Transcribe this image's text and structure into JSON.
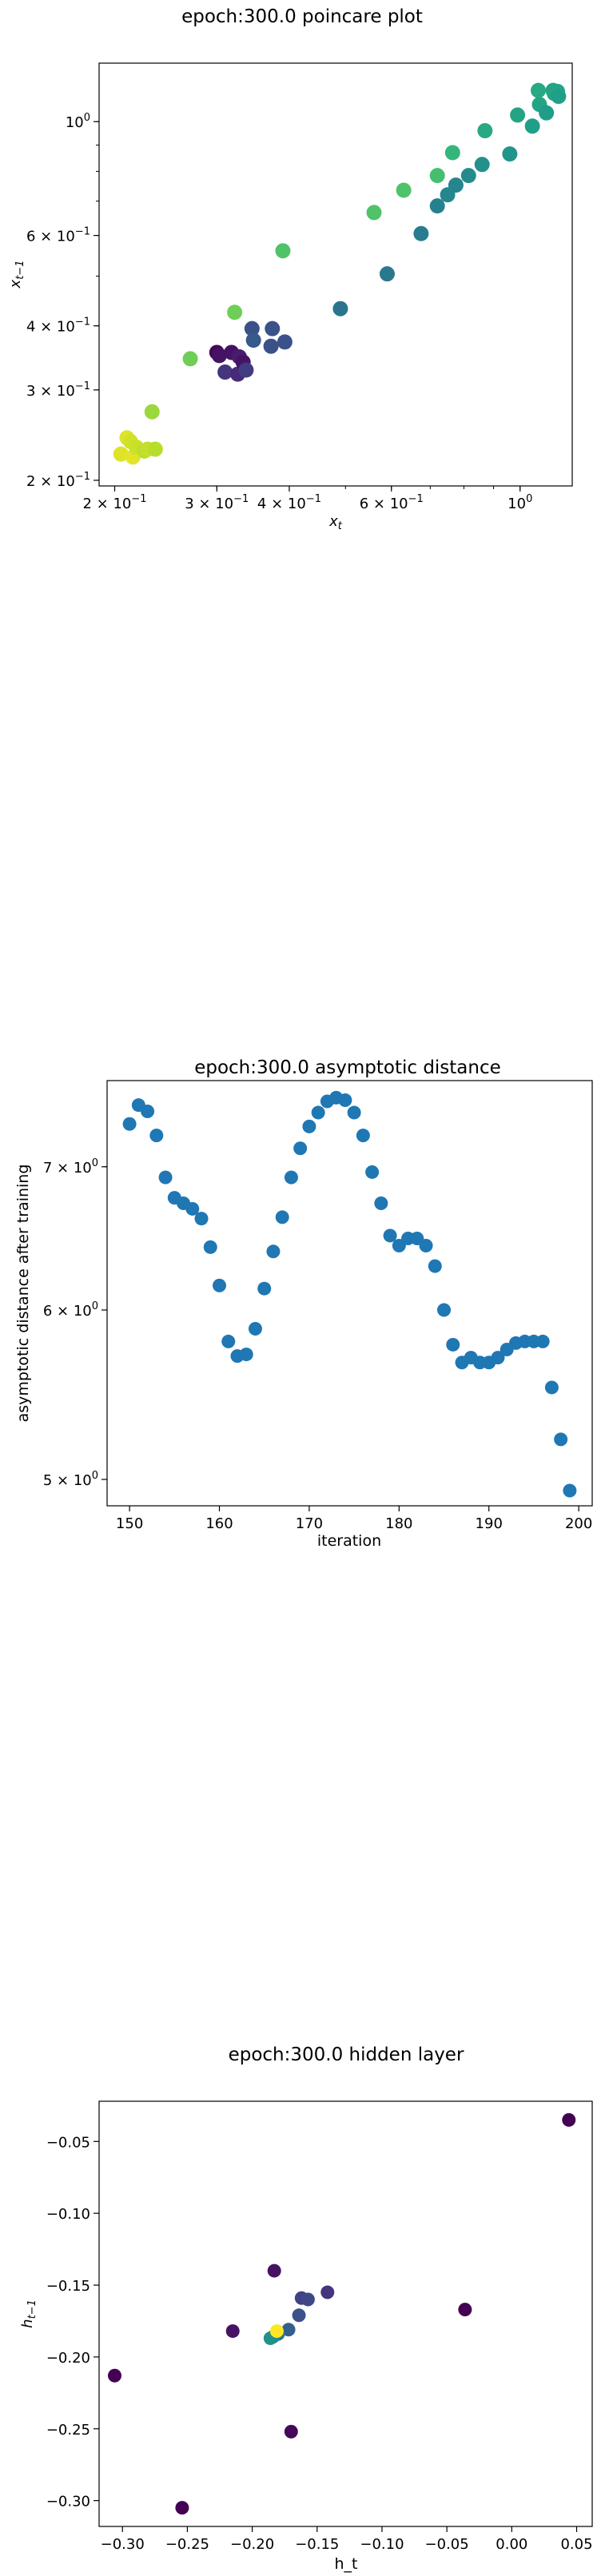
{
  "chart_data": [
    {
      "type": "scatter",
      "title": "epoch:300.0 poincare plot",
      "xlabel": "x_t",
      "ylabel": "x_{t-1}",
      "xscale": "log",
      "yscale": "log",
      "xlim": [
        0.188,
        1.23
      ],
      "ylim": [
        0.195,
        1.3
      ],
      "xticks": [
        {
          "v": 0.2,
          "base": "2",
          "mant": "10",
          "exp": "−1",
          "plain": false
        },
        {
          "v": 0.3,
          "base": "3",
          "mant": "10",
          "exp": "−1",
          "plain": false
        },
        {
          "v": 0.4,
          "base": "4",
          "mant": "10",
          "exp": "−1",
          "plain": false
        },
        {
          "v": 0.6,
          "base": "6",
          "mant": "10",
          "exp": "−1",
          "plain": false
        },
        {
          "v": 1.0,
          "base": "",
          "mant": "10",
          "exp": "0",
          "plain": true
        }
      ],
      "yticks": [
        {
          "v": 0.2,
          "base": "2",
          "mant": "10",
          "exp": "−1",
          "plain": false
        },
        {
          "v": 0.3,
          "base": "3",
          "mant": "10",
          "exp": "−1",
          "plain": false
        },
        {
          "v": 0.4,
          "base": "4",
          "mant": "10",
          "exp": "−1",
          "plain": false
        },
        {
          "v": 0.6,
          "base": "6",
          "mant": "10",
          "exp": "−1",
          "plain": false
        },
        {
          "v": 1.0,
          "base": "",
          "mant": "10",
          "exp": "0",
          "plain": true
        }
      ],
      "grid": false,
      "colormap": "viridis",
      "points": [
        {
          "x": 0.205,
          "y": 0.225,
          "c": 0.95
        },
        {
          "x": 0.21,
          "y": 0.242,
          "c": 0.95
        },
        {
          "x": 0.213,
          "y": 0.238,
          "c": 0.93
        },
        {
          "x": 0.215,
          "y": 0.222,
          "c": 0.96
        },
        {
          "x": 0.218,
          "y": 0.232,
          "c": 0.92
        },
        {
          "x": 0.225,
          "y": 0.228,
          "c": 0.9
        },
        {
          "x": 0.228,
          "y": 0.23,
          "c": 0.91
        },
        {
          "x": 0.232,
          "y": 0.272,
          "c": 0.85
        },
        {
          "x": 0.235,
          "y": 0.23,
          "c": 0.89
        },
        {
          "x": 0.27,
          "y": 0.345,
          "c": 0.78
        },
        {
          "x": 0.3,
          "y": 0.355,
          "c": 0.02
        },
        {
          "x": 0.303,
          "y": 0.35,
          "c": 0.05
        },
        {
          "x": 0.31,
          "y": 0.325,
          "c": 0.15
        },
        {
          "x": 0.318,
          "y": 0.355,
          "c": 0.05
        },
        {
          "x": 0.322,
          "y": 0.425,
          "c": 0.78
        },
        {
          "x": 0.326,
          "y": 0.322,
          "c": 0.12
        },
        {
          "x": 0.328,
          "y": 0.348,
          "c": 0.08
        },
        {
          "x": 0.333,
          "y": 0.34,
          "c": 0.05
        },
        {
          "x": 0.337,
          "y": 0.328,
          "c": 0.18
        },
        {
          "x": 0.345,
          "y": 0.395,
          "c": 0.25
        },
        {
          "x": 0.347,
          "y": 0.375,
          "c": 0.28
        },
        {
          "x": 0.372,
          "y": 0.365,
          "c": 0.25
        },
        {
          "x": 0.374,
          "y": 0.395,
          "c": 0.25
        },
        {
          "x": 0.39,
          "y": 0.56,
          "c": 0.72
        },
        {
          "x": 0.393,
          "y": 0.372,
          "c": 0.25
        },
        {
          "x": 0.49,
          "y": 0.432,
          "c": 0.38
        },
        {
          "x": 0.56,
          "y": 0.665,
          "c": 0.72
        },
        {
          "x": 0.59,
          "y": 0.505,
          "c": 0.4
        },
        {
          "x": 0.63,
          "y": 0.735,
          "c": 0.72
        },
        {
          "x": 0.675,
          "y": 0.605,
          "c": 0.42
        },
        {
          "x": 0.72,
          "y": 0.785,
          "c": 0.7
        },
        {
          "x": 0.72,
          "y": 0.685,
          "c": 0.44
        },
        {
          "x": 0.75,
          "y": 0.72,
          "c": 0.46
        },
        {
          "x": 0.765,
          "y": 0.87,
          "c": 0.66
        },
        {
          "x": 0.775,
          "y": 0.752,
          "c": 0.46
        },
        {
          "x": 0.815,
          "y": 0.785,
          "c": 0.48
        },
        {
          "x": 0.86,
          "y": 0.825,
          "c": 0.5
        },
        {
          "x": 0.87,
          "y": 0.96,
          "c": 0.6
        },
        {
          "x": 0.96,
          "y": 0.865,
          "c": 0.52
        },
        {
          "x": 0.99,
          "y": 1.03,
          "c": 0.58
        },
        {
          "x": 1.05,
          "y": 0.98,
          "c": 0.56
        },
        {
          "x": 1.08,
          "y": 1.08,
          "c": 0.58
        },
        {
          "x": 1.11,
          "y": 1.04,
          "c": 0.55
        },
        {
          "x": 1.14,
          "y": 1.15,
          "c": 0.58
        },
        {
          "x": 1.145,
          "y": 1.135,
          "c": 0.58
        },
        {
          "x": 1.16,
          "y": 1.145,
          "c": 0.58
        },
        {
          "x": 1.165,
          "y": 1.12,
          "c": 0.56
        },
        {
          "x": 1.075,
          "y": 1.15,
          "c": 0.6
        }
      ]
    },
    {
      "type": "scatter",
      "title": "epoch:300.0 asymptotic distance",
      "xlabel": "iteration",
      "ylabel": "asymptotic distance after training",
      "xscale": "linear",
      "yscale": "log",
      "xlim": [
        147.5,
        201.5
      ],
      "ylim": [
        4.86,
        7.68
      ],
      "xticks": [
        {
          "v": 150,
          "label": "150"
        },
        {
          "v": 160,
          "label": "160"
        },
        {
          "v": 170,
          "label": "170"
        },
        {
          "v": 180,
          "label": "180"
        },
        {
          "v": 190,
          "label": "190"
        },
        {
          "v": 200,
          "label": "200"
        }
      ],
      "yticks": [
        {
          "v": 5,
          "base": "5",
          "mant": "10",
          "exp": "0",
          "plain": false
        },
        {
          "v": 6,
          "base": "6",
          "mant": "10",
          "exp": "0",
          "plain": false
        },
        {
          "v": 7,
          "base": "7",
          "mant": "10",
          "exp": "0",
          "plain": false
        }
      ],
      "grid": false,
      "color": "#1f77b4",
      "x": [
        150,
        151,
        152,
        153,
        154,
        155,
        156,
        157,
        158,
        159,
        160,
        161,
        162,
        163,
        164,
        165,
        166,
        167,
        168,
        169,
        170,
        171,
        172,
        173,
        174,
        175,
        176,
        177,
        178,
        179,
        180,
        181,
        182,
        183,
        184,
        185,
        186,
        187,
        188,
        189,
        190,
        191,
        192,
        193,
        194,
        195,
        196,
        197,
        198,
        199
      ],
      "y": [
        7.33,
        7.48,
        7.43,
        7.24,
        6.92,
        6.77,
        6.73,
        6.69,
        6.62,
        6.42,
        6.16,
        5.8,
        5.71,
        5.72,
        5.88,
        6.14,
        6.39,
        6.63,
        6.92,
        7.14,
        7.31,
        7.42,
        7.51,
        7.54,
        7.52,
        7.42,
        7.24,
        6.96,
        6.73,
        6.5,
        6.43,
        6.48,
        6.48,
        6.43,
        6.29,
        6.0,
        5.78,
        5.67,
        5.7,
        5.67,
        5.67,
        5.7,
        5.75,
        5.79,
        5.8,
        5.8,
        5.8,
        5.52,
        5.22,
        4.94
      ]
    },
    {
      "type": "scatter",
      "title": "epoch:300.0 hidden layer",
      "xlabel": "h_t",
      "ylabel": "h_{t-1}",
      "xscale": "linear",
      "yscale": "linear",
      "xlim": [
        -0.318,
        0.062
      ],
      "ylim": [
        -0.318,
        -0.022
      ],
      "xticks": [
        {
          "v": -0.3,
          "label": "−0.30"
        },
        {
          "v": -0.25,
          "label": "−0.25"
        },
        {
          "v": -0.2,
          "label": "−0.20"
        },
        {
          "v": -0.15,
          "label": "−0.15"
        },
        {
          "v": -0.1,
          "label": "−0.10"
        },
        {
          "v": -0.05,
          "label": "−0.05"
        },
        {
          "v": 0.0,
          "label": "0.00"
        },
        {
          "v": 0.05,
          "label": "0.05"
        }
      ],
      "yticks": [
        {
          "v": -0.3,
          "label": "−0.30"
        },
        {
          "v": -0.25,
          "label": "−0.25"
        },
        {
          "v": -0.2,
          "label": "−0.20"
        },
        {
          "v": -0.15,
          "label": "−0.15"
        },
        {
          "v": -0.1,
          "label": "−0.10"
        },
        {
          "v": -0.05,
          "label": "−0.05"
        }
      ],
      "grid": false,
      "colormap": "viridis",
      "points": [
        {
          "x": 0.044,
          "y": -0.035,
          "c": 0.0
        },
        {
          "x": -0.036,
          "y": -0.167,
          "c": 0.0
        },
        {
          "x": -0.306,
          "y": -0.213,
          "c": 0.0
        },
        {
          "x": -0.254,
          "y": -0.305,
          "c": 0.0
        },
        {
          "x": -0.215,
          "y": -0.182,
          "c": 0.05
        },
        {
          "x": -0.183,
          "y": -0.14,
          "c": 0.05
        },
        {
          "x": -0.17,
          "y": -0.252,
          "c": 0.02
        },
        {
          "x": -0.142,
          "y": -0.155,
          "c": 0.15
        },
        {
          "x": -0.162,
          "y": -0.159,
          "c": 0.2
        },
        {
          "x": -0.157,
          "y": -0.16,
          "c": 0.22
        },
        {
          "x": -0.164,
          "y": -0.171,
          "c": 0.25
        },
        {
          "x": -0.172,
          "y": -0.181,
          "c": 0.3
        },
        {
          "x": -0.18,
          "y": -0.184,
          "c": 0.4
        },
        {
          "x": -0.184,
          "y": -0.186,
          "c": 0.45
        },
        {
          "x": -0.186,
          "y": -0.187,
          "c": 0.5
        },
        {
          "x": -0.181,
          "y": -0.182,
          "c": 1.0
        }
      ]
    }
  ]
}
